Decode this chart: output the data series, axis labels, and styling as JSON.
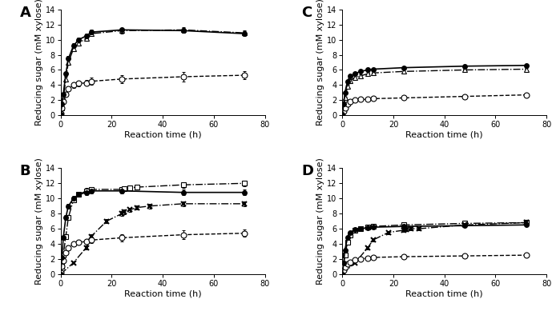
{
  "xlabel": "Reaction time (h)",
  "ylabel": "Reducing sugar (mM xylose)",
  "ylim": [
    0,
    14
  ],
  "yticks": [
    0,
    2,
    4,
    6,
    8,
    10,
    12,
    14
  ],
  "xlim": [
    0,
    80
  ],
  "xticks": [
    0,
    20,
    40,
    60,
    80
  ],
  "A": {
    "filled_circle": {
      "x": [
        0,
        0.5,
        1,
        2,
        3,
        5,
        7,
        10,
        12,
        24,
        48,
        72
      ],
      "y": [
        0.1,
        1.5,
        2.8,
        5.5,
        7.5,
        9.2,
        10.0,
        10.5,
        11.0,
        11.3,
        11.2,
        10.8
      ],
      "yerr": [
        0.05,
        0.15,
        0.2,
        0.25,
        0.3,
        0.3,
        0.3,
        0.3,
        0.35,
        0.3,
        0.3,
        0.3
      ]
    },
    "open_triangle": {
      "x": [
        0,
        0.5,
        1,
        2,
        3,
        5,
        7,
        10,
        12,
        24,
        48,
        72
      ],
      "y": [
        0.0,
        1.0,
        2.2,
        4.8,
        7.0,
        8.8,
        9.5,
        10.2,
        10.8,
        11.2,
        11.3,
        10.9
      ],
      "yerr": [
        0.05,
        0.1,
        0.2,
        0.25,
        0.3,
        0.3,
        0.3,
        0.35,
        0.35,
        0.35,
        0.35,
        0.35
      ]
    },
    "open_circle": {
      "x": [
        0,
        0.5,
        1,
        2,
        3,
        5,
        7,
        10,
        12,
        24,
        48,
        72
      ],
      "y": [
        0.2,
        1.0,
        1.8,
        2.8,
        3.5,
        4.0,
        4.2,
        4.3,
        4.5,
        4.8,
        5.1,
        5.3
      ],
      "yerr": [
        0.1,
        0.15,
        0.2,
        0.25,
        0.3,
        0.35,
        0.35,
        0.35,
        0.45,
        0.55,
        0.6,
        0.5
      ]
    }
  },
  "B": {
    "filled_circle": {
      "x": [
        0,
        0.5,
        1,
        2,
        3,
        5,
        7,
        10,
        12,
        24,
        48,
        72
      ],
      "y": [
        0.0,
        2.2,
        4.8,
        7.5,
        9.0,
        10.0,
        10.5,
        10.8,
        11.0,
        11.0,
        10.8,
        10.8
      ],
      "yerr": [
        0.05,
        0.2,
        0.3,
        0.3,
        0.3,
        0.3,
        0.3,
        0.35,
        0.35,
        0.35,
        0.35,
        0.35
      ]
    },
    "open_square": {
      "x": [
        0,
        0.5,
        1,
        2,
        3,
        5,
        7,
        10,
        12,
        24,
        25,
        27,
        30,
        48,
        72
      ],
      "y": [
        0.1,
        1.0,
        2.5,
        5.0,
        7.5,
        9.8,
        10.5,
        11.0,
        11.2,
        11.2,
        11.3,
        11.4,
        11.5,
        11.8,
        12.0
      ],
      "yerr": [
        0.05,
        0.15,
        0.25,
        0.3,
        0.3,
        0.3,
        0.3,
        0.35,
        0.35,
        0.35,
        0.35,
        0.35,
        0.35,
        0.35,
        0.35
      ]
    },
    "cross": {
      "x": [
        0,
        5,
        10,
        12,
        18,
        24,
        25,
        27,
        30,
        35,
        48,
        72
      ],
      "y": [
        0.0,
        1.5,
        3.5,
        5.0,
        7.0,
        8.0,
        8.2,
        8.5,
        8.8,
        9.0,
        9.3,
        9.3
      ],
      "yerr": [
        0.05,
        0.15,
        0.25,
        0.3,
        0.3,
        0.3,
        0.3,
        0.3,
        0.3,
        0.3,
        0.3,
        0.3
      ]
    },
    "open_circle": {
      "x": [
        0,
        0.5,
        1,
        2,
        3,
        5,
        7,
        10,
        12,
        24,
        48,
        72
      ],
      "y": [
        0.2,
        1.0,
        1.8,
        2.8,
        3.5,
        4.0,
        4.2,
        4.3,
        4.5,
        4.8,
        5.2,
        5.4
      ],
      "yerr": [
        0.1,
        0.15,
        0.2,
        0.25,
        0.3,
        0.35,
        0.35,
        0.35,
        0.45,
        0.5,
        0.6,
        0.5
      ]
    }
  },
  "C": {
    "filled_circle": {
      "x": [
        0,
        0.5,
        1,
        2,
        3,
        5,
        7,
        10,
        12,
        24,
        48,
        72
      ],
      "y": [
        0.1,
        1.5,
        3.0,
        4.5,
        5.2,
        5.5,
        5.8,
        6.0,
        6.1,
        6.3,
        6.5,
        6.6
      ],
      "yerr": [
        0.05,
        0.15,
        0.2,
        0.2,
        0.2,
        0.2,
        0.2,
        0.2,
        0.2,
        0.2,
        0.2,
        0.2
      ]
    },
    "open_triangle": {
      "x": [
        0,
        0.5,
        1,
        2,
        3,
        5,
        7,
        10,
        12,
        24,
        48,
        72
      ],
      "y": [
        0.0,
        1.0,
        2.3,
        3.8,
        4.6,
        5.0,
        5.2,
        5.5,
        5.6,
        5.8,
        6.0,
        6.1
      ],
      "yerr": [
        0.05,
        0.1,
        0.2,
        0.2,
        0.2,
        0.2,
        0.2,
        0.2,
        0.2,
        0.2,
        0.2,
        0.2
      ]
    },
    "open_circle": {
      "x": [
        0,
        0.5,
        1,
        2,
        3,
        5,
        7,
        10,
        12,
        24,
        48,
        72
      ],
      "y": [
        0.1,
        0.5,
        1.0,
        1.5,
        1.8,
        2.0,
        2.1,
        2.1,
        2.2,
        2.3,
        2.5,
        2.7
      ],
      "yerr": [
        0.05,
        0.08,
        0.1,
        0.12,
        0.15,
        0.15,
        0.15,
        0.15,
        0.15,
        0.2,
        0.2,
        0.2
      ]
    }
  },
  "D": {
    "filled_circle": {
      "x": [
        0,
        0.5,
        1,
        2,
        3,
        5,
        7,
        10,
        12,
        24,
        48,
        72
      ],
      "y": [
        0.0,
        1.5,
        3.2,
        4.8,
        5.5,
        5.9,
        6.0,
        6.1,
        6.2,
        6.3,
        6.4,
        6.5
      ],
      "yerr": [
        0.05,
        0.15,
        0.2,
        0.2,
        0.2,
        0.2,
        0.2,
        0.2,
        0.2,
        0.2,
        0.2,
        0.2
      ]
    },
    "open_square": {
      "x": [
        0,
        0.5,
        1,
        2,
        3,
        5,
        7,
        10,
        12,
        24,
        48,
        72
      ],
      "y": [
        0.1,
        1.0,
        2.5,
        4.2,
        5.2,
        5.8,
        6.0,
        6.2,
        6.3,
        6.5,
        6.7,
        6.8
      ],
      "yerr": [
        0.05,
        0.1,
        0.2,
        0.2,
        0.2,
        0.2,
        0.2,
        0.2,
        0.2,
        0.2,
        0.2,
        0.2
      ]
    },
    "cross": {
      "x": [
        0,
        5,
        10,
        12,
        18,
        24,
        25,
        27,
        30,
        48,
        72
      ],
      "y": [
        0.0,
        1.5,
        3.5,
        4.5,
        5.5,
        5.8,
        5.9,
        6.0,
        6.0,
        6.5,
        6.8
      ],
      "yerr": [
        0.05,
        0.15,
        0.2,
        0.2,
        0.2,
        0.2,
        0.2,
        0.2,
        0.2,
        0.2,
        0.2
      ]
    },
    "open_circle": {
      "x": [
        0,
        0.5,
        1,
        2,
        3,
        5,
        7,
        10,
        12,
        24,
        48,
        72
      ],
      "y": [
        0.0,
        0.5,
        0.9,
        1.3,
        1.6,
        1.9,
        2.0,
        2.1,
        2.2,
        2.3,
        2.4,
        2.5
      ],
      "yerr": [
        0.05,
        0.08,
        0.1,
        0.12,
        0.15,
        0.15,
        0.15,
        0.15,
        0.15,
        0.2,
        0.2,
        0.2
      ]
    }
  },
  "line_color": "#000000",
  "background_color": "#ffffff",
  "label_fontsize": 8,
  "panel_label_fontsize": 13,
  "tick_fontsize": 7
}
